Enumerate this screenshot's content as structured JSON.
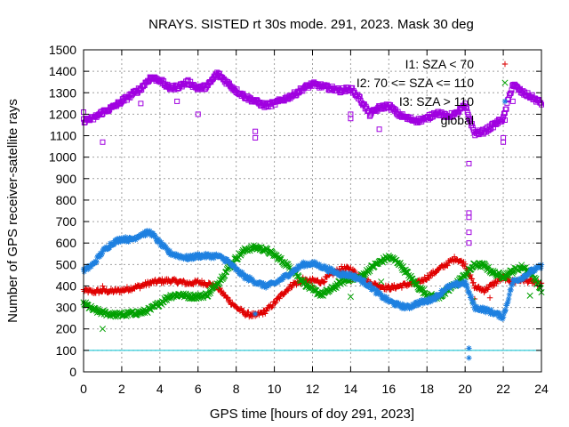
{
  "chart_data": {
    "type": "scatter",
    "title": "NRAYS. SISTED rt 30s mode. 291, 2023. Mask 30 deg",
    "xlabel": "GPS time [hours of doy 291, 2023]",
    "ylabel": "Number of GPS receiver-satellite rays",
    "xlim": [
      0,
      24
    ],
    "ylim": [
      0,
      1500
    ],
    "x_ticks": [
      0,
      2,
      4,
      6,
      8,
      10,
      12,
      14,
      16,
      18,
      20,
      22,
      24
    ],
    "y_ticks": [
      0,
      100,
      200,
      300,
      400,
      500,
      600,
      700,
      800,
      900,
      1000,
      1100,
      1200,
      1300,
      1400,
      1500
    ],
    "grid": true,
    "legend_position": "top-right",
    "reference_line": {
      "y": 100,
      "color": "#00c0d0"
    },
    "series": [
      {
        "name": "I1: SZA < 70",
        "marker": "+",
        "color": "#e00000",
        "points": [
          [
            0,
            380
          ],
          [
            0.5,
            372
          ],
          [
            1,
            378
          ],
          [
            1.5,
            375
          ],
          [
            2,
            380
          ],
          [
            2.5,
            390
          ],
          [
            3,
            400
          ],
          [
            3.5,
            415
          ],
          [
            4,
            422
          ],
          [
            4.5,
            425
          ],
          [
            5,
            420
          ],
          [
            5.5,
            412
          ],
          [
            6,
            418
          ],
          [
            6.5,
            412
          ],
          [
            7,
            395
          ],
          [
            7.5,
            345
          ],
          [
            8,
            300
          ],
          [
            8.5,
            270
          ],
          [
            9,
            262
          ],
          [
            9.5,
            280
          ],
          [
            10,
            320
          ],
          [
            10.5,
            370
          ],
          [
            11,
            410
          ],
          [
            11.5,
            420
          ],
          [
            12,
            425
          ],
          [
            12.5,
            420
          ],
          [
            13,
            455
          ],
          [
            13.5,
            480
          ],
          [
            14,
            480
          ],
          [
            14.5,
            440
          ],
          [
            15,
            415
          ],
          [
            15.5,
            400
          ],
          [
            16,
            390
          ],
          [
            16.5,
            398
          ],
          [
            17,
            408
          ],
          [
            17.5,
            412
          ],
          [
            18,
            440
          ],
          [
            18.5,
            470
          ],
          [
            19,
            500
          ],
          [
            19.5,
            530
          ],
          [
            20,
            500
          ],
          [
            20.5,
            395
          ],
          [
            21,
            380
          ],
          [
            21.5,
            410
          ],
          [
            22,
            440
          ],
          [
            22.5,
            420
          ],
          [
            23,
            430
          ],
          [
            23.5,
            420
          ],
          [
            24,
            405
          ]
        ],
        "outliers": [
          [
            1,
            400
          ],
          [
            9,
            260
          ],
          [
            11.5,
            440
          ],
          [
            12,
            395
          ],
          [
            14,
            420
          ],
          [
            20.5,
            340
          ],
          [
            21.3,
            345
          ],
          [
            22.2,
            430
          ]
        ]
      },
      {
        "name": "I2: 70 <= SZA <= 110",
        "marker": "x",
        "color": "#00a000",
        "points": [
          [
            0,
            320
          ],
          [
            0.5,
            290
          ],
          [
            1,
            275
          ],
          [
            1.5,
            268
          ],
          [
            2,
            265
          ],
          [
            2.5,
            272
          ],
          [
            3,
            276
          ],
          [
            3.5,
            290
          ],
          [
            4,
            320
          ],
          [
            4.5,
            352
          ],
          [
            5,
            360
          ],
          [
            5.5,
            352
          ],
          [
            6,
            350
          ],
          [
            6.5,
            360
          ],
          [
            7,
            410
          ],
          [
            7.5,
            470
          ],
          [
            8,
            530
          ],
          [
            8.5,
            570
          ],
          [
            9,
            580
          ],
          [
            9.5,
            570
          ],
          [
            10,
            545
          ],
          [
            10.5,
            510
          ],
          [
            11,
            470
          ],
          [
            11.5,
            420
          ],
          [
            12,
            380
          ],
          [
            12.5,
            360
          ],
          [
            13,
            385
          ],
          [
            13.5,
            420
          ],
          [
            14,
            435
          ],
          [
            14.5,
            440
          ],
          [
            15,
            480
          ],
          [
            15.5,
            510
          ],
          [
            16,
            535
          ],
          [
            16.5,
            510
          ],
          [
            17,
            455
          ],
          [
            17.5,
            400
          ],
          [
            18,
            360
          ],
          [
            18.5,
            345
          ],
          [
            19,
            370
          ],
          [
            19.5,
            410
          ],
          [
            20,
            450
          ],
          [
            20.5,
            500
          ],
          [
            21,
            495
          ],
          [
            21.5,
            460
          ],
          [
            22,
            445
          ],
          [
            22.5,
            470
          ],
          [
            23,
            490
          ],
          [
            23.5,
            460
          ],
          [
            24,
            380
          ]
        ],
        "outliers": [
          [
            1,
            200
          ],
          [
            14,
            350
          ],
          [
            20.4,
            330
          ],
          [
            15.6,
            420
          ],
          [
            23.4,
            355
          ]
        ]
      },
      {
        "name": "I3: SZA > 110",
        "marker": "*",
        "color": "#1e80e0",
        "points": [
          [
            0,
            470
          ],
          [
            0.5,
            500
          ],
          [
            1,
            560
          ],
          [
            1.5,
            600
          ],
          [
            2,
            620
          ],
          [
            2.5,
            615
          ],
          [
            3,
            640
          ],
          [
            3.5,
            650
          ],
          [
            4,
            600
          ],
          [
            4.5,
            555
          ],
          [
            5,
            540
          ],
          [
            5.5,
            530
          ],
          [
            6,
            540
          ],
          [
            6.5,
            540
          ],
          [
            7,
            540
          ],
          [
            7.5,
            520
          ],
          [
            8,
            475
          ],
          [
            8.5,
            440
          ],
          [
            9,
            420
          ],
          [
            9.5,
            400
          ],
          [
            10,
            410
          ],
          [
            10.5,
            440
          ],
          [
            11,
            470
          ],
          [
            11.5,
            500
          ],
          [
            12,
            505
          ],
          [
            12.5,
            490
          ],
          [
            13,
            470
          ],
          [
            13.5,
            455
          ],
          [
            14,
            450
          ],
          [
            14.5,
            430
          ],
          [
            15,
            400
          ],
          [
            15.5,
            360
          ],
          [
            16,
            330
          ],
          [
            16.5,
            310
          ],
          [
            17,
            300
          ],
          [
            17.5,
            320
          ],
          [
            18,
            330
          ],
          [
            18.5,
            350
          ],
          [
            19,
            390
          ],
          [
            19.5,
            405
          ],
          [
            20,
            415
          ],
          [
            20.5,
            300
          ],
          [
            21,
            290
          ],
          [
            21.5,
            275
          ],
          [
            22,
            255
          ],
          [
            22.5,
            420
          ],
          [
            23,
            440
          ],
          [
            23.5,
            470
          ],
          [
            24,
            490
          ]
        ],
        "outliers": [
          [
            9,
            270
          ],
          [
            20.2,
            110
          ],
          [
            20.2,
            65
          ]
        ]
      },
      {
        "name": "global",
        "marker": "square",
        "color": "#a000e0",
        "points": [
          [
            0,
            1170
          ],
          [
            0.5,
            1180
          ],
          [
            1,
            1210
          ],
          [
            1.5,
            1230
          ],
          [
            2,
            1260
          ],
          [
            2.5,
            1290
          ],
          [
            3,
            1320
          ],
          [
            3.5,
            1370
          ],
          [
            4,
            1360
          ],
          [
            4.5,
            1320
          ],
          [
            5,
            1330
          ],
          [
            5.5,
            1350
          ],
          [
            6,
            1320
          ],
          [
            6.5,
            1330
          ],
          [
            7,
            1390
          ],
          [
            7.5,
            1350
          ],
          [
            8,
            1310
          ],
          [
            8.5,
            1280
          ],
          [
            9,
            1260
          ],
          [
            9.5,
            1240
          ],
          [
            10,
            1250
          ],
          [
            10.5,
            1270
          ],
          [
            11,
            1290
          ],
          [
            11.5,
            1320
          ],
          [
            12,
            1340
          ],
          [
            12.5,
            1330
          ],
          [
            13,
            1320
          ],
          [
            13.5,
            1310
          ],
          [
            14,
            1320
          ],
          [
            14.5,
            1270
          ],
          [
            15,
            1200
          ],
          [
            15.5,
            1230
          ],
          [
            16,
            1240
          ],
          [
            16.5,
            1200
          ],
          [
            17,
            1180
          ],
          [
            17.5,
            1170
          ],
          [
            18,
            1180
          ],
          [
            18.5,
            1210
          ],
          [
            19,
            1190
          ],
          [
            19.5,
            1200
          ],
          [
            20,
            1240
          ],
          [
            20.5,
            1110
          ],
          [
            21,
            1120
          ],
          [
            21.5,
            1150
          ],
          [
            22,
            1180
          ],
          [
            22.5,
            1340
          ],
          [
            23,
            1300
          ],
          [
            23.5,
            1280
          ],
          [
            24,
            1250
          ]
        ],
        "outliers": [
          [
            0,
            1210
          ],
          [
            1,
            1070
          ],
          [
            9,
            1120
          ],
          [
            9,
            1090
          ],
          [
            14,
            1200
          ],
          [
            14,
            1180
          ],
          [
            15.5,
            1130
          ],
          [
            20.2,
            970
          ],
          [
            20.2,
            740
          ],
          [
            20.2,
            720
          ],
          [
            20.2,
            650
          ],
          [
            20.2,
            600
          ],
          [
            22,
            1090
          ],
          [
            22,
            1070
          ],
          [
            22.5,
            1260
          ],
          [
            6,
            1200
          ],
          [
            4.9,
            1260
          ],
          [
            3,
            1250
          ]
        ]
      }
    ]
  }
}
